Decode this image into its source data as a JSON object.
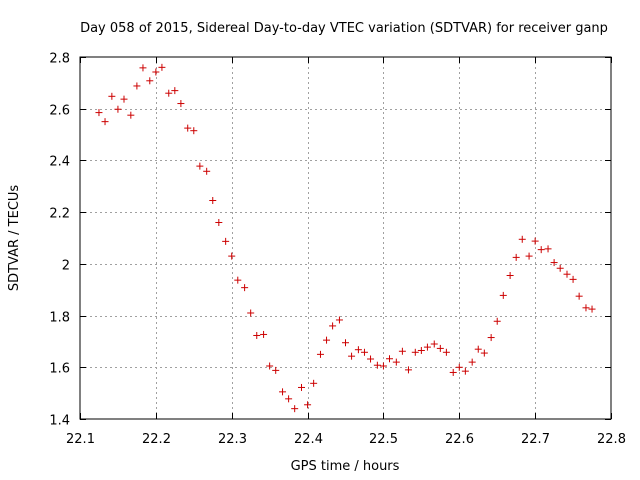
{
  "chart_data": {
    "type": "scatter",
    "title": "Day 058 of 2015, Sidereal Day-to-day VTEC variation (SDTVAR) for receiver ganp",
    "xlabel": "GPS time / hours",
    "ylabel": "SDTVAR / TECUs",
    "xlim": [
      22.1,
      22.8
    ],
    "ylim": [
      1.4,
      2.8
    ],
    "x_ticks": [
      22.1,
      22.2,
      22.3,
      22.4,
      22.5,
      22.6,
      22.7,
      22.8
    ],
    "x_tick_labels": [
      "22.1",
      "22.2",
      "22.3",
      "22.4",
      "22.5",
      "22.6",
      "22.7",
      "22.8"
    ],
    "y_ticks": [
      1.4,
      1.6,
      1.8,
      2.0,
      2.2,
      2.4,
      2.6,
      2.8
    ],
    "y_tick_labels": [
      "1.4",
      "1.6",
      "1.8",
      "2",
      "2.2",
      "2.4",
      "2.6",
      "2.8"
    ],
    "grid": true,
    "marker": "+",
    "series": [
      {
        "name": "SDTVAR",
        "color": "#cc0000",
        "x": [
          22.125,
          22.133,
          22.142,
          22.15,
          22.158,
          22.167,
          22.175,
          22.183,
          22.192,
          22.2,
          22.208,
          22.217,
          22.225,
          22.233,
          22.242,
          22.25,
          22.258,
          22.267,
          22.275,
          22.283,
          22.292,
          22.3,
          22.308,
          22.317,
          22.325,
          22.333,
          22.342,
          22.35,
          22.358,
          22.367,
          22.375,
          22.383,
          22.392,
          22.4,
          22.408,
          22.417,
          22.425,
          22.433,
          22.442,
          22.45,
          22.458,
          22.467,
          22.475,
          22.483,
          22.492,
          22.5,
          22.508,
          22.517,
          22.525,
          22.533,
          22.542,
          22.55,
          22.558,
          22.567,
          22.575,
          22.583,
          22.592,
          22.6,
          22.608,
          22.617,
          22.625,
          22.633,
          22.642,
          22.65,
          22.658,
          22.667,
          22.675,
          22.683,
          22.692,
          22.7,
          22.708,
          22.717,
          22.725,
          22.733,
          22.742,
          22.75,
          22.758,
          22.767,
          22.775
        ],
        "y": [
          2.585,
          2.55,
          2.648,
          2.598,
          2.637,
          2.575,
          2.688,
          2.758,
          2.708,
          2.742,
          2.76,
          2.66,
          2.67,
          2.62,
          2.525,
          2.515,
          2.378,
          2.358,
          2.245,
          2.16,
          2.087,
          2.03,
          1.937,
          1.908,
          1.81,
          1.723,
          1.727,
          1.605,
          1.588,
          1.505,
          1.478,
          1.44,
          1.522,
          1.455,
          1.538,
          1.65,
          1.705,
          1.76,
          1.783,
          1.695,
          1.643,
          1.668,
          1.658,
          1.632,
          1.608,
          1.605,
          1.633,
          1.62,
          1.662,
          1.59,
          1.658,
          1.665,
          1.678,
          1.69,
          1.673,
          1.658,
          1.58,
          1.6,
          1.585,
          1.62,
          1.67,
          1.655,
          1.715,
          1.778,
          1.878,
          1.955,
          2.025,
          2.095,
          2.03,
          2.088,
          2.055,
          2.058,
          2.005,
          1.983,
          1.96,
          1.94,
          1.875,
          1.83,
          1.825
        ]
      }
    ]
  }
}
